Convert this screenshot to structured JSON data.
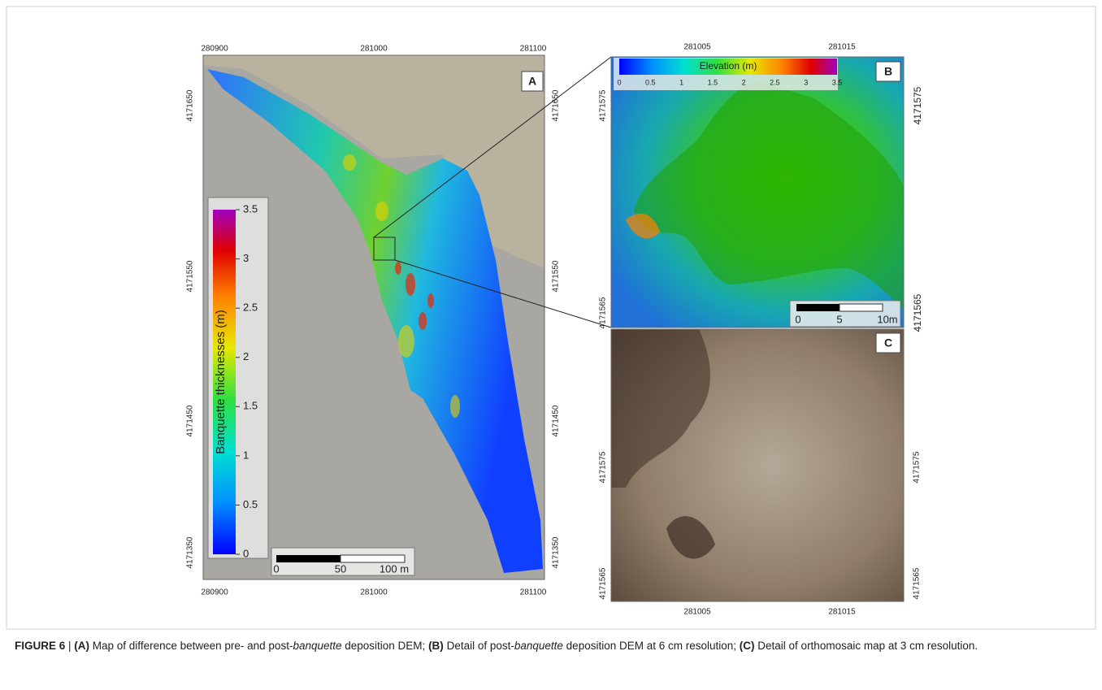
{
  "panel_a": {
    "label": "A",
    "x_ticks_top": [
      "280900",
      "281000",
      "281100"
    ],
    "x_ticks_bottom": [
      "280900",
      "281000",
      "281100"
    ],
    "y_ticks_left": [
      "4171650",
      "4171550",
      "4171450",
      "4171350"
    ],
    "y_ticks_right": [
      "4171650",
      "4171550",
      "4171450",
      "4171350"
    ],
    "colorbar": {
      "title": "Banquette thicknesses  (m)",
      "ticks": [
        "0",
        "0.5",
        "1",
        "1.5",
        "2",
        "2.5",
        "3",
        "3.5"
      ]
    },
    "scale_bar": {
      "labels": [
        "0",
        "50",
        "100 m"
      ]
    }
  },
  "panel_b": {
    "label": "B",
    "x_ticks_top": [
      "281005",
      "281015"
    ],
    "y_ticks_left": [
      "4171575",
      "4171565"
    ],
    "y_ticks_right": [
      "4171575",
      "4171565"
    ],
    "colorbar": {
      "title": "Elevation (m)",
      "ticks": [
        "0",
        "0.5",
        "1",
        "1.5",
        "2",
        "2.5",
        "3",
        "3.5"
      ]
    },
    "scale_bar": {
      "labels": [
        "0",
        "5",
        "10m"
      ]
    }
  },
  "panel_c": {
    "label": "C",
    "x_ticks_bottom": [
      "281005",
      "281015"
    ],
    "y_ticks_left": [
      "4171575",
      "4171565"
    ],
    "y_ticks_right": [
      "4171575",
      "4171565"
    ]
  },
  "caption": {
    "segments": [
      {
        "text": "FIGURE 6",
        "style": "bold"
      },
      {
        "text": " | ",
        "style": "normal"
      },
      {
        "text": "(A)",
        "style": "bold"
      },
      {
        "text": " Map of difference between pre- and post-",
        "style": "normal"
      },
      {
        "text": "banquette",
        "style": "italic"
      },
      {
        "text": " deposition DEM; ",
        "style": "normal"
      },
      {
        "text": "(B)",
        "style": "bold"
      },
      {
        "text": " Detail of post-",
        "style": "normal"
      },
      {
        "text": "banquette",
        "style": "italic"
      },
      {
        "text": " deposition DEM at 6 cm resolution; ",
        "style": "normal"
      },
      {
        "text": "(C)",
        "style": "bold"
      },
      {
        "text": " Detail of orthomosaic map at 3 cm resolution.",
        "style": "normal"
      }
    ]
  }
}
